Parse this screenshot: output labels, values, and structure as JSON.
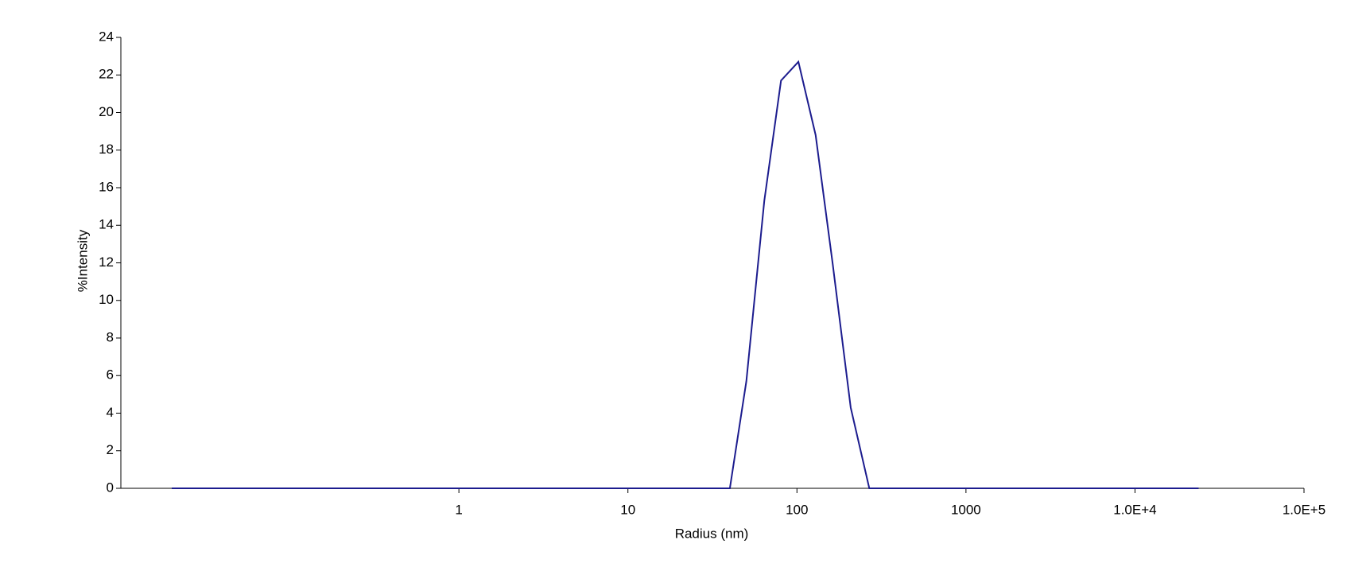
{
  "chart_data": {
    "type": "line",
    "xlabel": "Radius (nm)",
    "ylabel": "%Intensity",
    "xscale": "log",
    "x": [
      0.02,
      40.1,
      50.2,
      64.1,
      80.5,
      102,
      129,
      163,
      208,
      268,
      23800
    ],
    "series": [
      {
        "name": "Intensity",
        "color": "#1c1c8e",
        "values": [
          0,
          0,
          5.7,
          15.3,
          21.7,
          22.7,
          18.8,
          11.9,
          4.3,
          0,
          0
        ]
      }
    ],
    "xlim": [
      0.01,
      100000
    ],
    "xticks": [
      1,
      10,
      100,
      1000,
      {
        "value": 10000,
        "label": "1.0E+4"
      },
      {
        "value": 100000,
        "label": "1.0E+5"
      }
    ],
    "ylim": [
      0,
      24
    ],
    "yticks": [
      0,
      2,
      4,
      6,
      8,
      10,
      12,
      14,
      16,
      18,
      20,
      22,
      24
    ],
    "grid": false
  }
}
